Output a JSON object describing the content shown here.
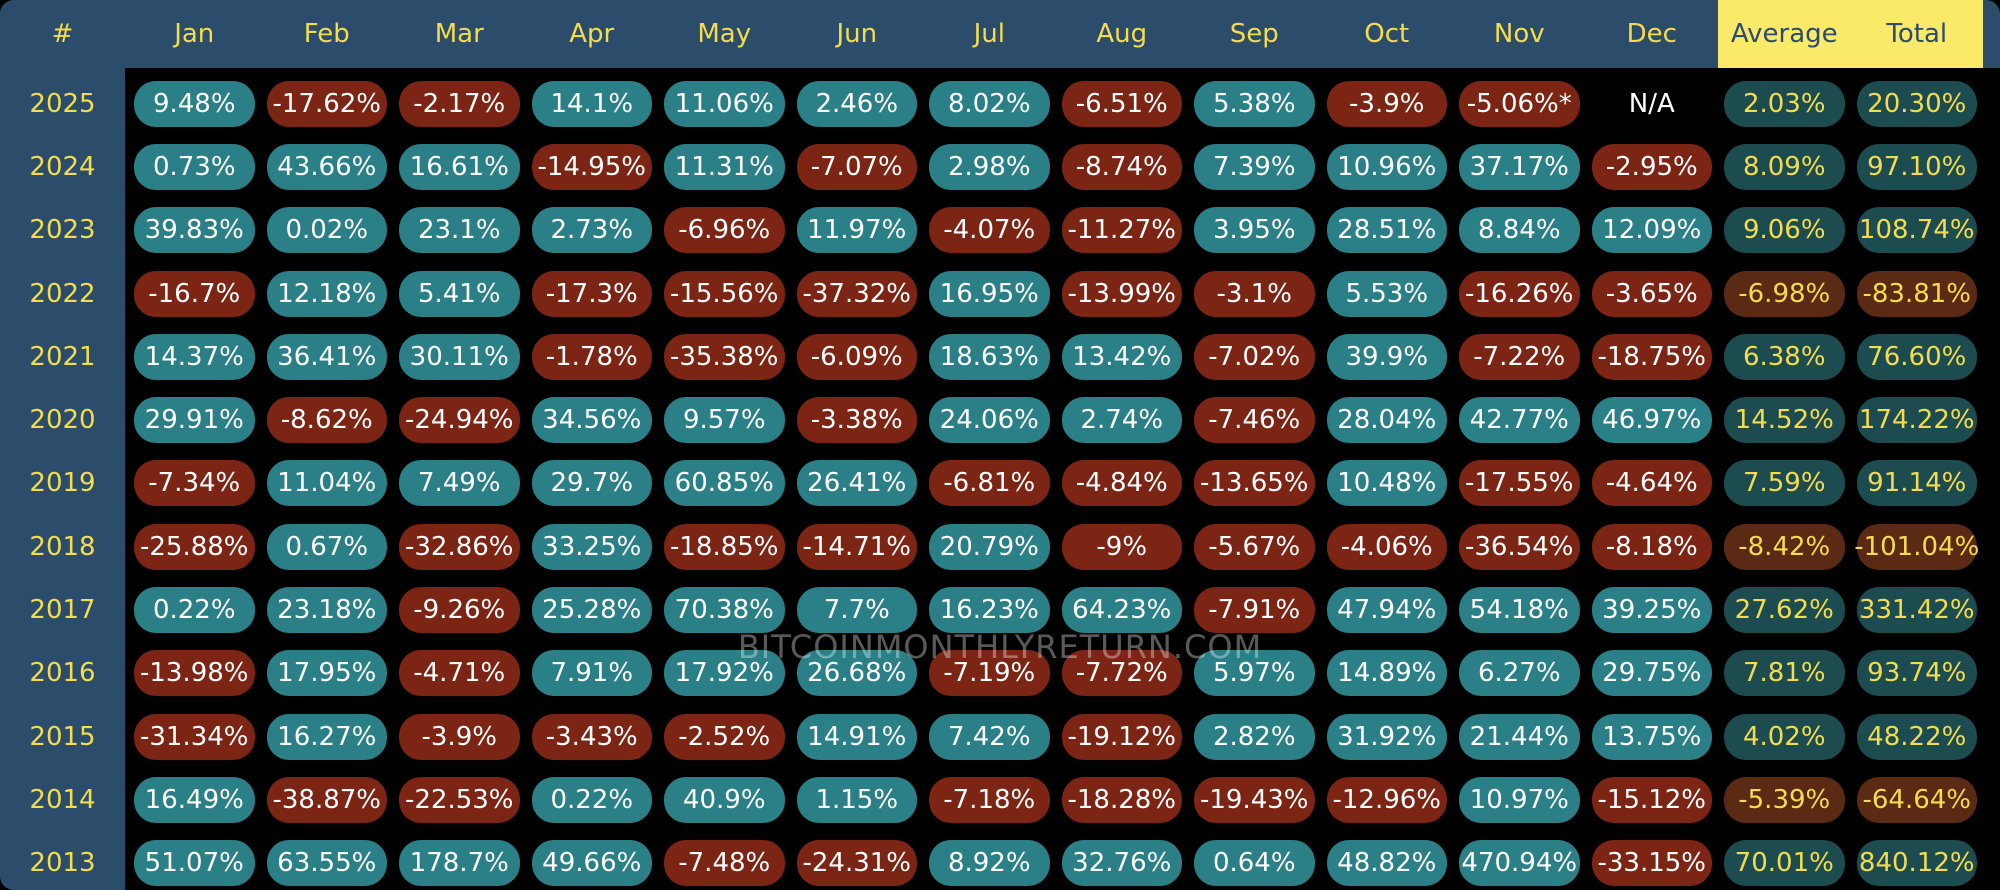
{
  "chart_data": {
    "type": "table",
    "title": "",
    "corner_label": "#",
    "columns": [
      "Jan",
      "Feb",
      "Mar",
      "Apr",
      "May",
      "Jun",
      "Jul",
      "Aug",
      "Sep",
      "Oct",
      "Nov",
      "Dec",
      "Average",
      "Total"
    ],
    "highlight_columns": [
      "Average",
      "Total"
    ],
    "rows": [
      {
        "year": "2025",
        "values": [
          "9.48%",
          "-17.62%",
          "-2.17%",
          "14.1%",
          "11.06%",
          "2.46%",
          "8.02%",
          "-6.51%",
          "5.38%",
          "-3.9%",
          "-5.06%*",
          "N/A",
          "2.03%",
          "20.30%"
        ]
      },
      {
        "year": "2024",
        "values": [
          "0.73%",
          "43.66%",
          "16.61%",
          "-14.95%",
          "11.31%",
          "-7.07%",
          "2.98%",
          "-8.74%",
          "7.39%",
          "10.96%",
          "37.17%",
          "-2.95%",
          "8.09%",
          "97.10%"
        ]
      },
      {
        "year": "2023",
        "values": [
          "39.83%",
          "0.02%",
          "23.1%",
          "2.73%",
          "-6.96%",
          "11.97%",
          "-4.07%",
          "-11.27%",
          "3.95%",
          "28.51%",
          "8.84%",
          "12.09%",
          "9.06%",
          "108.74%"
        ]
      },
      {
        "year": "2022",
        "values": [
          "-16.7%",
          "12.18%",
          "5.41%",
          "-17.3%",
          "-15.56%",
          "-37.32%",
          "16.95%",
          "-13.99%",
          "-3.1%",
          "5.53%",
          "-16.26%",
          "-3.65%",
          "-6.98%",
          "-83.81%"
        ]
      },
      {
        "year": "2021",
        "values": [
          "14.37%",
          "36.41%",
          "30.11%",
          "-1.78%",
          "-35.38%",
          "-6.09%",
          "18.63%",
          "13.42%",
          "-7.02%",
          "39.9%",
          "-7.22%",
          "-18.75%",
          "6.38%",
          "76.60%"
        ]
      },
      {
        "year": "2020",
        "values": [
          "29.91%",
          "-8.62%",
          "-24.94%",
          "34.56%",
          "9.57%",
          "-3.38%",
          "24.06%",
          "2.74%",
          "-7.46%",
          "28.04%",
          "42.77%",
          "46.97%",
          "14.52%",
          "174.22%"
        ]
      },
      {
        "year": "2019",
        "values": [
          "-7.34%",
          "11.04%",
          "7.49%",
          "29.7%",
          "60.85%",
          "26.41%",
          "-6.81%",
          "-4.84%",
          "-13.65%",
          "10.48%",
          "-17.55%",
          "-4.64%",
          "7.59%",
          "91.14%"
        ]
      },
      {
        "year": "2018",
        "values": [
          "-25.88%",
          "0.67%",
          "-32.86%",
          "33.25%",
          "-18.85%",
          "-14.71%",
          "20.79%",
          "-9%",
          "-5.67%",
          "-4.06%",
          "-36.54%",
          "-8.18%",
          "-8.42%",
          "-101.04%"
        ]
      },
      {
        "year": "2017",
        "values": [
          "0.22%",
          "23.18%",
          "-9.26%",
          "25.28%",
          "70.38%",
          "7.7%",
          "16.23%",
          "64.23%",
          "-7.91%",
          "47.94%",
          "54.18%",
          "39.25%",
          "27.62%",
          "331.42%"
        ]
      },
      {
        "year": "2016",
        "values": [
          "-13.98%",
          "17.95%",
          "-4.71%",
          "7.91%",
          "17.92%",
          "26.68%",
          "-7.19%",
          "-7.72%",
          "5.97%",
          "14.89%",
          "6.27%",
          "29.75%",
          "7.81%",
          "93.74%"
        ]
      },
      {
        "year": "2015",
        "values": [
          "-31.34%",
          "16.27%",
          "-3.9%",
          "-3.43%",
          "-2.52%",
          "14.91%",
          "7.42%",
          "-19.12%",
          "2.82%",
          "31.92%",
          "21.44%",
          "13.75%",
          "4.02%",
          "48.22%"
        ]
      },
      {
        "year": "2014",
        "values": [
          "16.49%",
          "-38.87%",
          "-22.53%",
          "0.22%",
          "40.9%",
          "1.15%",
          "-7.18%",
          "-18.28%",
          "-19.43%",
          "-12.96%",
          "10.97%",
          "-15.12%",
          "-5.39%",
          "-64.64%"
        ]
      },
      {
        "year": "2013",
        "values": [
          "51.07%",
          "63.55%",
          "178.7%",
          "49.66%",
          "-7.48%",
          "-24.31%",
          "8.92%",
          "32.76%",
          "0.64%",
          "48.82%",
          "470.94%",
          "-33.15%",
          "70.01%",
          "840.12%"
        ]
      }
    ],
    "watermark": "BITCOINMONTHLYRETURN.COM"
  },
  "colors": {
    "header_bg": "#2b4c6a",
    "header_text": "#f3dc4e",
    "highlight_bg": "#fbe96a",
    "positive": "#2b8087",
    "negative": "#7d2515"
  }
}
